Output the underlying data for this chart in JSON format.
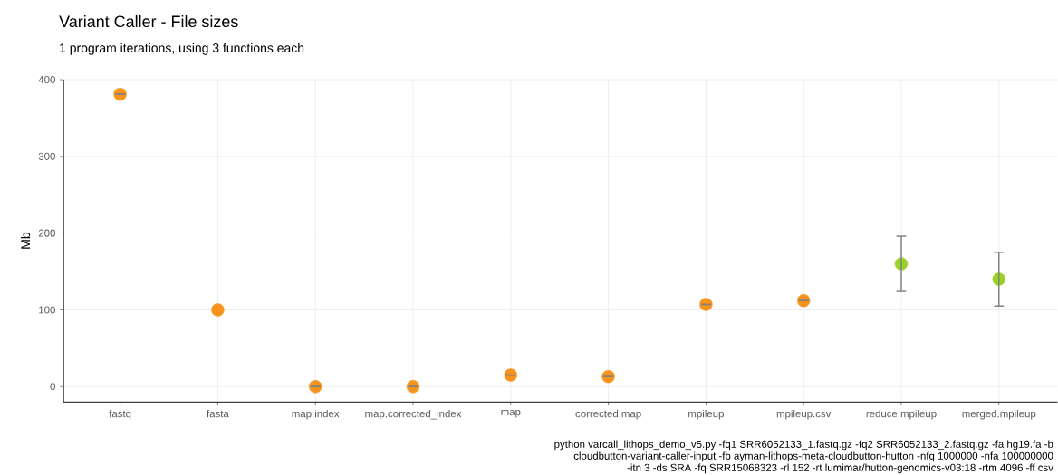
{
  "chart_data": {
    "type": "scatter",
    "title": "Variant Caller - File sizes",
    "subtitle": "1 program iterations, using 3 functions each",
    "ylabel": "Mb",
    "categories": [
      "fastq",
      "fasta",
      "map.index",
      "map.corrected_index",
      "map",
      "corrected.map",
      "mpileup",
      "mpileup.csv",
      "reduce.mpileup",
      "merged.mpileup"
    ],
    "values": [
      381,
      100,
      0,
      0,
      15,
      13,
      107,
      112,
      160,
      140
    ],
    "errors": [
      0,
      null,
      0,
      0,
      0,
      0,
      0,
      0,
      [
        124,
        196
      ],
      [
        105,
        175
      ]
    ],
    "colors": [
      "#f7941d",
      "#f7941d",
      "#f7941d",
      "#f7941d",
      "#f7941d",
      "#f7941d",
      "#f7941d",
      "#f7941d",
      "#9bd22a",
      "#9bd22a"
    ],
    "ylim": [
      -20,
      400
    ],
    "yticks": [
      0,
      100,
      200,
      300,
      400
    ],
    "grid": true,
    "marker": "circle",
    "annotations": [
      "python varcall_lithops_demo_v5.py -fq1 SRR6052133_1.fastq.gz -fq2 SRR6052133_2.fastq.gz -fa hg19.fa -b",
      "cloudbutton-variant-caller-input -fb ayman-lithops-meta-cloudbutton-hutton -nfq 1000000 -nfa 100000000",
      "-itn 3 -ds SRA -fq SRR15068323 -rl 152 -rt lumimar/hutton-genomics-v03:18 -rtm 4096 -ff csv"
    ]
  }
}
